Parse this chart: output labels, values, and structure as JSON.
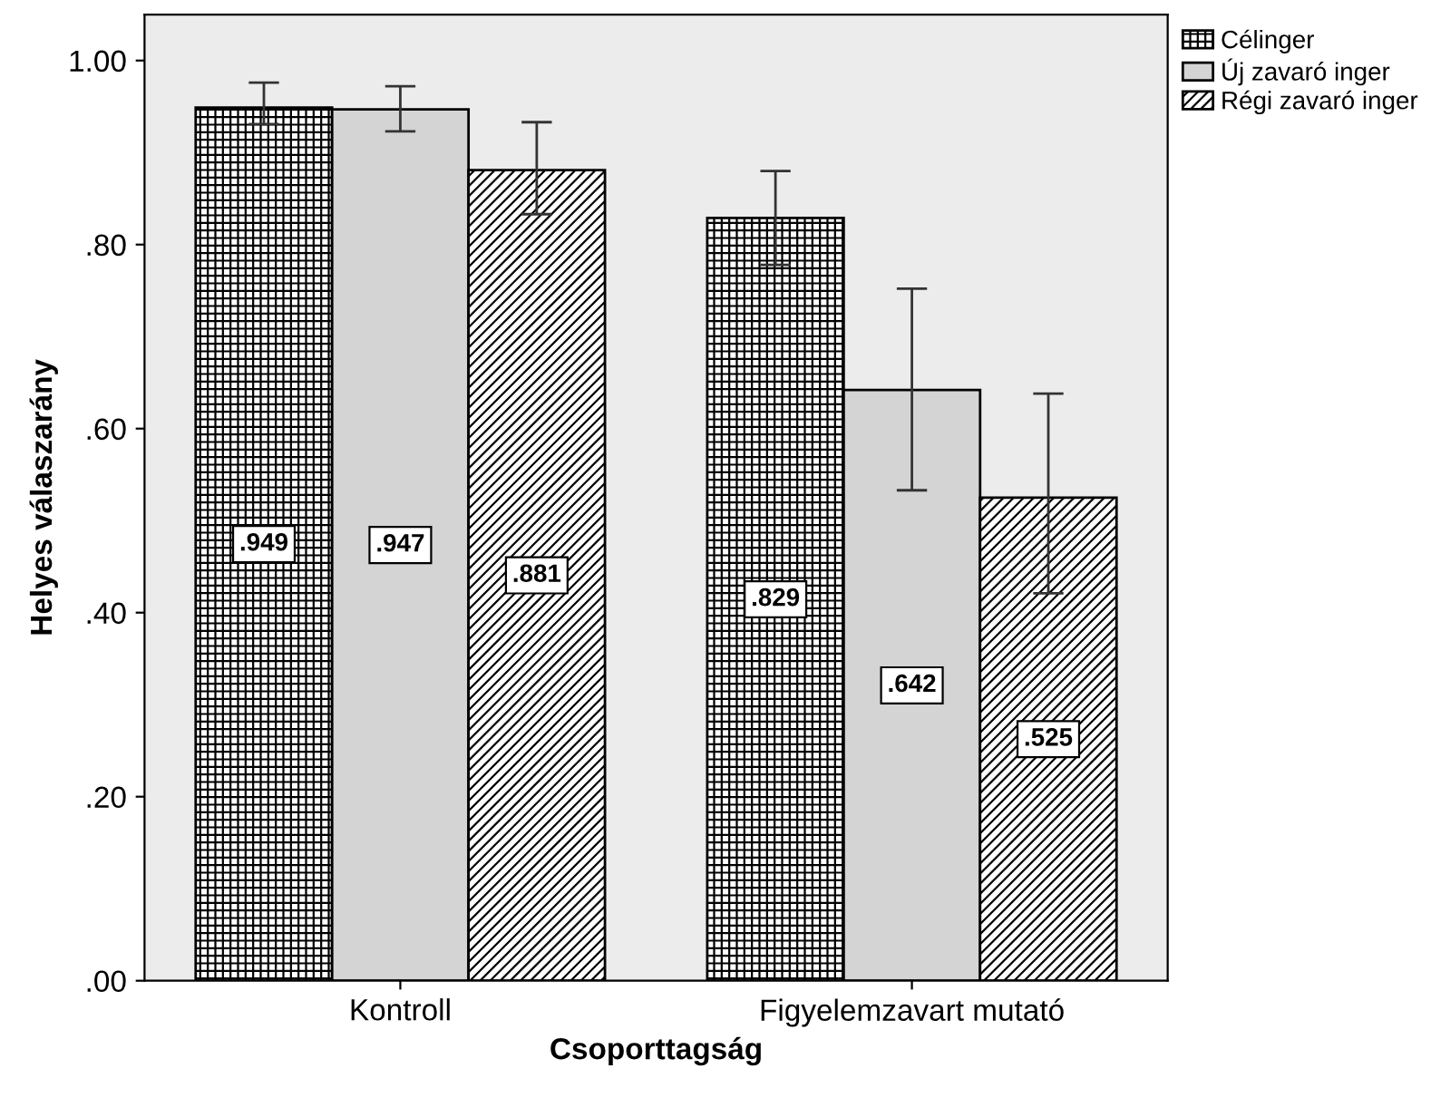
{
  "chart_data": {
    "type": "bar",
    "xlabel": "Csoporttagság",
    "ylabel": "Helyes válaszarány",
    "categories": [
      "Kontroll",
      "Figyelemzavart mutató"
    ],
    "series": [
      {
        "name": "Célinger",
        "color": "#000000",
        "values": [
          0.949,
          0.829
        ],
        "value_labels": [
          ".949",
          ".829"
        ],
        "errors": [
          [
            0.931,
            0.976
          ],
          [
            0.778,
            0.88
          ]
        ]
      },
      {
        "name": "Új zavaró inger",
        "color": "#d4d4d4",
        "values": [
          0.947,
          0.642
        ],
        "value_labels": [
          ".947",
          ".642"
        ],
        "errors": [
          [
            0.923,
            0.972
          ],
          [
            0.533,
            0.752
          ]
        ]
      },
      {
        "name": "Régi zavaró inger",
        "color": "#000000",
        "values": [
          0.881,
          0.525
        ],
        "value_labels": [
          ".881",
          ".525"
        ],
        "errors": [
          [
            0.833,
            0.933
          ],
          [
            0.421,
            0.638
          ]
        ]
      }
    ],
    "ylim": [
      0,
      1.05
    ],
    "yticks": [
      {
        "value": 0,
        "label": ".00"
      },
      {
        "value": 0.2,
        "label": ".20"
      },
      {
        "value": 0.4,
        "label": ".40"
      },
      {
        "value": 0.6,
        "label": ".60"
      },
      {
        "value": 0.8,
        "label": ".80"
      },
      {
        "value": 1.0,
        "label": "1.00"
      }
    ],
    "grid": false,
    "legend": "top right"
  }
}
